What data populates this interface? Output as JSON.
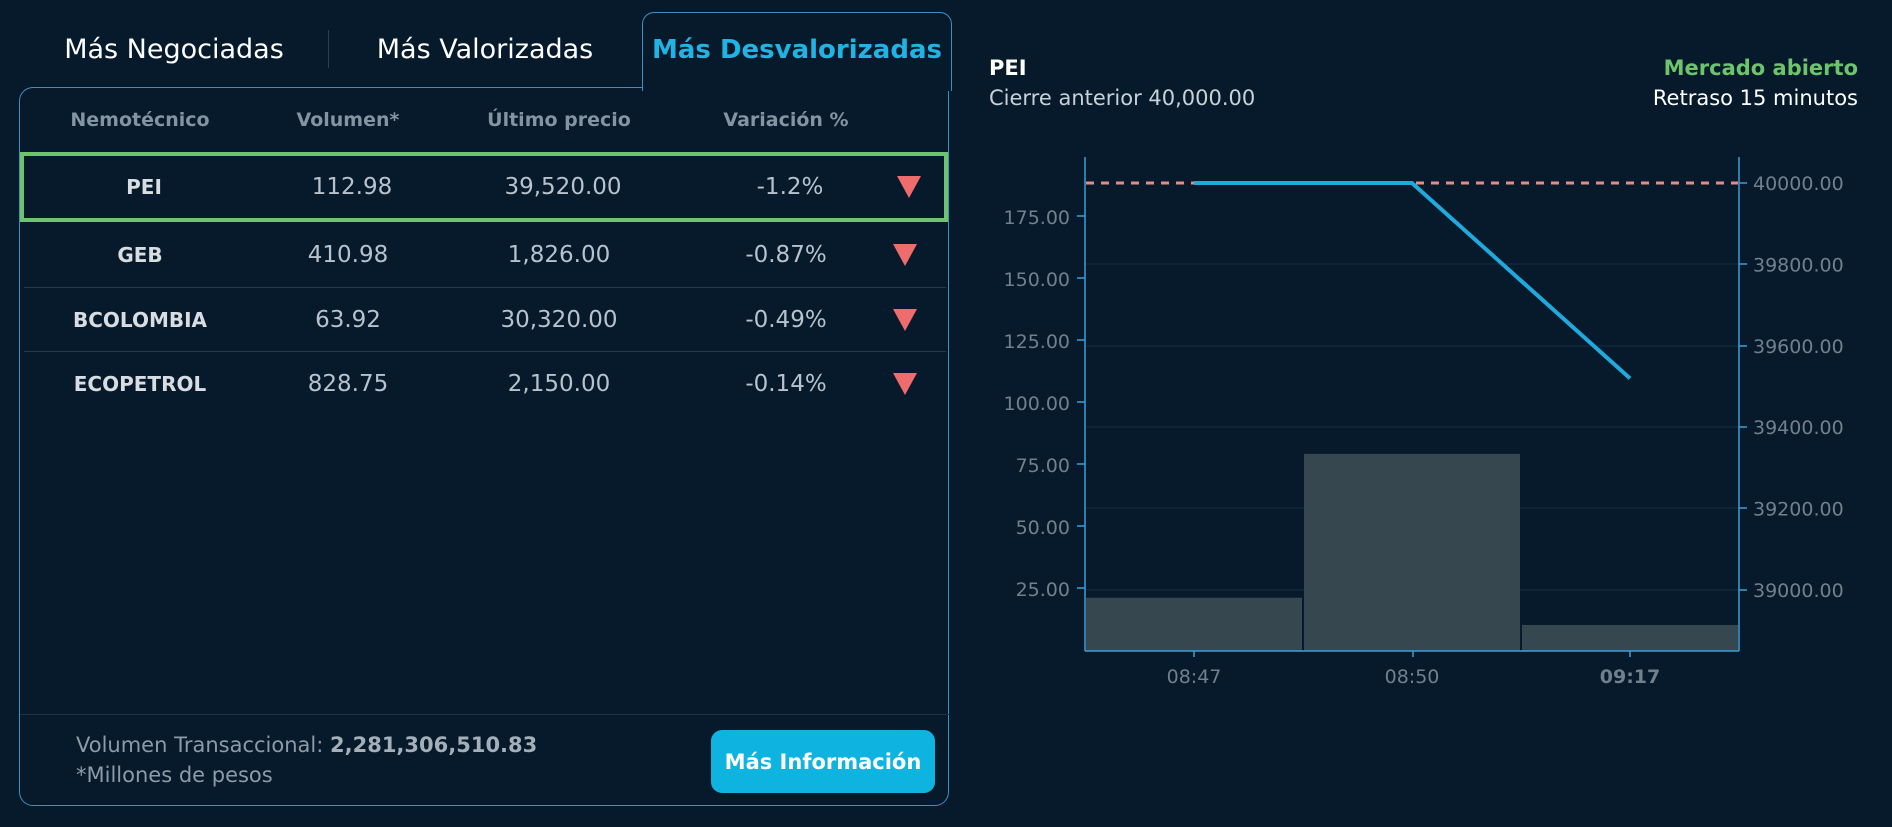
{
  "tabs": [
    {
      "label": "Más Negociadas",
      "active": false
    },
    {
      "label": "Más Valorizadas",
      "active": false
    },
    {
      "label": "Más Desvalorizadas",
      "active": true
    }
  ],
  "table": {
    "headers": [
      "Nemotécnico",
      "Volumen*",
      "Último precio",
      "Variación %"
    ],
    "rows": [
      {
        "symbol": "PEI",
        "volume": "112.98",
        "price": "39,520.00",
        "variation": "-1.2%",
        "direction": "down",
        "selected": true
      },
      {
        "symbol": "GEB",
        "volume": "410.98",
        "price": "1,826.00",
        "variation": "-0.87%",
        "direction": "down",
        "selected": false
      },
      {
        "symbol": "BCOLOMBIA",
        "volume": "63.92",
        "price": "30,320.00",
        "variation": "-0.49%",
        "direction": "down",
        "selected": false
      },
      {
        "symbol": "ECOPETROL",
        "volume": "828.75",
        "price": "2,150.00",
        "variation": "-0.14%",
        "direction": "down",
        "selected": false
      }
    ]
  },
  "footer": {
    "volume_label": "Volumen Transaccional: ",
    "volume_value": "2,281,306,510.83",
    "note": "*Millones de pesos",
    "button_label": "Más Información"
  },
  "detail": {
    "symbol": "PEI",
    "previous_close": "Cierre anterior 40,000.00",
    "market_status": "Mercado abierto",
    "delay": "Retraso 15 minutos"
  },
  "colors": {
    "background": "#061a2b",
    "accent": "#1fb4e3",
    "border": "#3c8fc4",
    "selected_border": "#6cc46c",
    "down": "#ee6c6c",
    "market_open": "#6cc46c",
    "button": "#0fb3e0",
    "bar": "#37474f",
    "price_line": "#1fa9dc",
    "reference_line": "#e98a7e"
  },
  "chart_data": {
    "type": "bar+line",
    "title": "PEI",
    "categories": [
      "08:47",
      "08:50",
      "09:17"
    ],
    "series": [
      {
        "name": "Volumen",
        "axis": "left",
        "type": "bar",
        "values": [
          21.5,
          79.5,
          10.5
        ]
      },
      {
        "name": "Precio",
        "axis": "right",
        "type": "line",
        "values": [
          40000,
          40000,
          39520
        ]
      }
    ],
    "reference_line": {
      "name": "Cierre anterior",
      "value": 40000,
      "style": "dashed"
    },
    "left_axis": {
      "ticks": [
        "25.00",
        "50.00",
        "75.00",
        "100.00",
        "125.00",
        "150.00",
        "175.00"
      ],
      "range": [
        0,
        195
      ]
    },
    "right_axis": {
      "ticks": [
        "39000.00",
        "39200.00",
        "39400.00",
        "39600.00",
        "39800.00",
        "40000.00"
      ],
      "range": [
        38850,
        40065
      ]
    },
    "xlabel": "",
    "ylabel": "",
    "grid": "horizontal (right axis)",
    "legend": "none"
  }
}
